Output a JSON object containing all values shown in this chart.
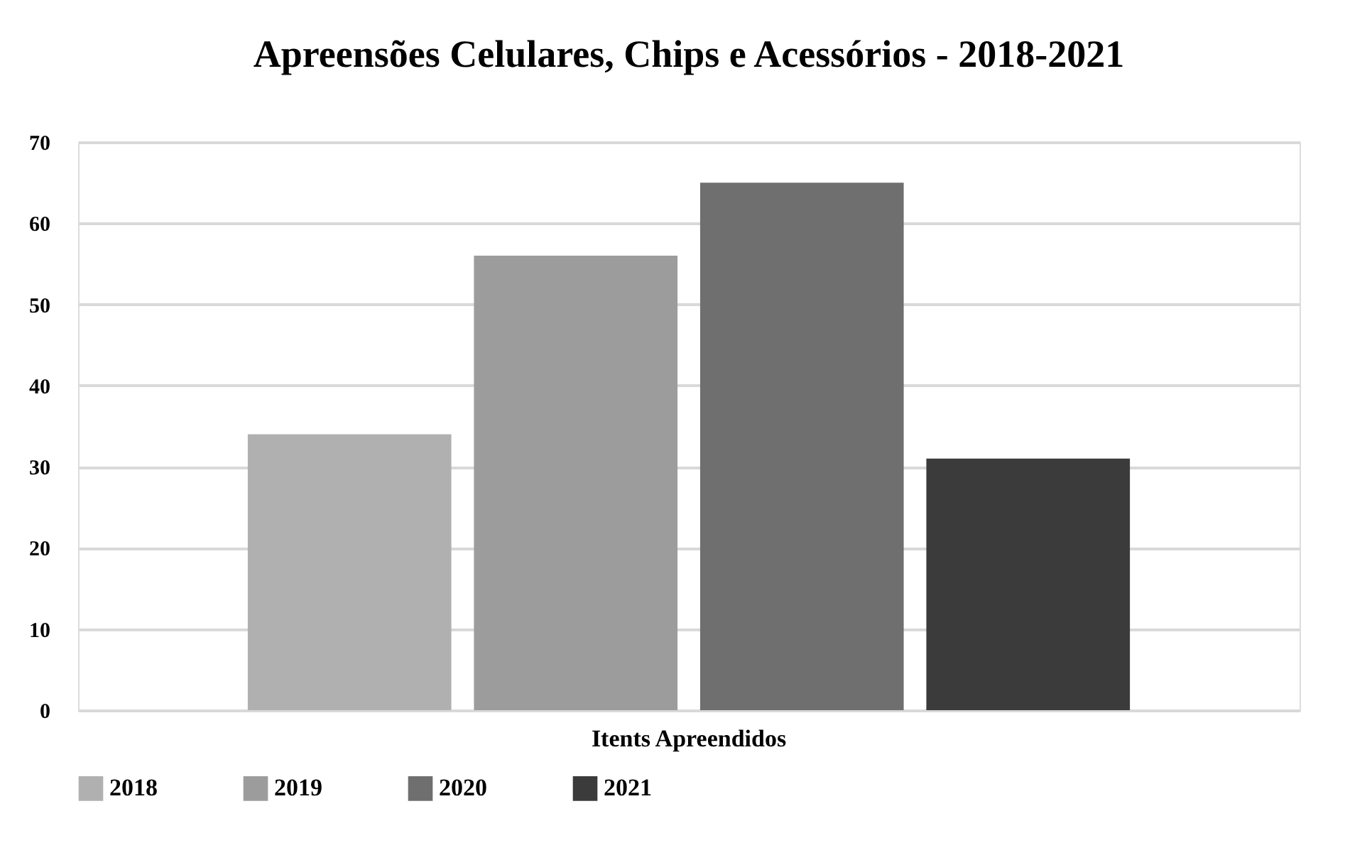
{
  "chart_data": {
    "type": "bar",
    "title": "Apreensões Celulares, Chips e Acessórios - 2018-2021",
    "categories": [
      "Itents Apreendidos"
    ],
    "series": [
      {
        "name": "2018",
        "color": "#b0b0b0",
        "values": [
          34
        ]
      },
      {
        "name": "2019",
        "color": "#9c9c9c",
        "values": [
          56
        ]
      },
      {
        "name": "2020",
        "color": "#6f6f6f",
        "values": [
          65
        ]
      },
      {
        "name": "2021",
        "color": "#3b3b3b",
        "values": [
          31
        ]
      }
    ],
    "ylim": [
      0,
      70
    ],
    "yticks": [
      0,
      10,
      20,
      30,
      40,
      50,
      60,
      70
    ],
    "grid": "y",
    "legend": "bottom"
  }
}
